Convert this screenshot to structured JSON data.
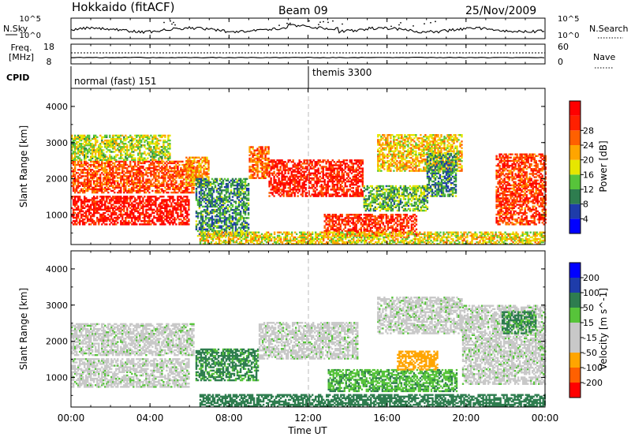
{
  "header": {
    "station": "Hokkaido (fitACF)",
    "beam": "Beam 09",
    "date": "25/Nov/2009"
  },
  "noise_panel": {
    "left_label": "N.Sky",
    "right_label": "N.Search",
    "tick_top": "10^5",
    "tick_bottom": "10^0"
  },
  "freq_panel": {
    "left_label_1": "Freq.",
    "left_label_2": "[MHz]",
    "left_tick_top": "18",
    "left_tick_bottom": "8",
    "right_tick_top": "60",
    "right_tick_bottom": "0",
    "right_label": "Nave"
  },
  "cpid": {
    "label": "CPID",
    "mode1": "normal (fast) 151",
    "mode2": "themis 3300"
  },
  "colors": {
    "power_scale": [
      "#0000ff",
      "#1e3caa",
      "#2e7d4f",
      "#57c43a",
      "#e6e600",
      "#ffa500",
      "#ff6000",
      "#ff2000",
      "#ff0000"
    ],
    "velocity_scale": [
      "#ff0000",
      "#ff6000",
      "#ffa500",
      "#c8c8c8",
      "#c8c8c8",
      "#57c43a",
      "#2e7d4f",
      "#1e3caa",
      "#0000ff"
    ],
    "ground_scatter": "#b4b4b4"
  },
  "chart_data": {
    "type": "heatmap",
    "x_axis": {
      "label": "Time UT",
      "range_hours": [
        0,
        24
      ],
      "ticks": [
        "00:00",
        "04:00",
        "08:00",
        "12:00",
        "16:00",
        "20:00",
        "00:00"
      ]
    },
    "y_axis": {
      "label": "Slant Range [km]",
      "range_km": [
        180,
        4500
      ],
      "ticks": [
        "1000",
        "2000",
        "3000",
        "4000"
      ]
    },
    "power_panel": {
      "colorbar_label": "Power [dB]",
      "colorbar_ticks": [
        "4",
        "8",
        "12",
        "16",
        "20",
        "24",
        "28"
      ],
      "range_db": [
        0,
        30
      ],
      "regions": [
        {
          "t0": 0.0,
          "t1": 6.0,
          "r0": 720,
          "r1": 1500,
          "power": 27
        },
        {
          "t0": 0.0,
          "t1": 6.2,
          "r0": 1600,
          "r1": 2500,
          "power": 23
        },
        {
          "t0": 0.0,
          "t1": 5.0,
          "r0": 2500,
          "r1": 3200,
          "power": 14
        },
        {
          "t0": 5.8,
          "t1": 7.0,
          "r0": 1800,
          "r1": 2600,
          "power": 19
        },
        {
          "t0": 6.3,
          "t1": 9.0,
          "r0": 400,
          "r1": 2000,
          "power": 9
        },
        {
          "t0": 9.0,
          "t1": 10.0,
          "r0": 2000,
          "r1": 2900,
          "power": 21
        },
        {
          "t0": 10.0,
          "t1": 14.8,
          "r0": 1500,
          "r1": 2500,
          "power": 26
        },
        {
          "t0": 12.8,
          "t1": 17.5,
          "r0": 400,
          "r1": 1000,
          "power": 25
        },
        {
          "t0": 14.8,
          "t1": 18.0,
          "r0": 1100,
          "r1": 1800,
          "power": 11
        },
        {
          "t0": 15.5,
          "t1": 19.8,
          "r0": 2200,
          "r1": 3200,
          "power": 17
        },
        {
          "t0": 18.0,
          "t1": 19.5,
          "r0": 1500,
          "r1": 2700,
          "power": 9
        },
        {
          "t0": 21.5,
          "t1": 24.0,
          "r0": 720,
          "r1": 2700,
          "power": 24
        },
        {
          "t0": 6.5,
          "t1": 24.0,
          "r0": 180,
          "r1": 500,
          "power": 16
        }
      ]
    },
    "velocity_panel": {
      "colorbar_label": "Velocity [m s^-1]",
      "colorbar_ticks": [
        "200",
        "100",
        "50",
        "15",
        "-15",
        "-50",
        "-100",
        "-200"
      ],
      "range_ms": [
        -250,
        250
      ],
      "regions": [
        {
          "t0": 0.0,
          "t1": 6.0,
          "r0": 720,
          "r1": 1500,
          "velocity": 0
        },
        {
          "t0": 0.0,
          "t1": 6.2,
          "r0": 1600,
          "r1": 2500,
          "velocity": 0
        },
        {
          "t0": 6.3,
          "t1": 9.5,
          "r0": 900,
          "r1": 1800,
          "velocity": 60
        },
        {
          "t0": 9.5,
          "t1": 14.5,
          "r0": 1500,
          "r1": 2500,
          "velocity": 0
        },
        {
          "t0": 13.0,
          "t1": 19.5,
          "r0": 600,
          "r1": 1200,
          "velocity": 40
        },
        {
          "t0": 15.5,
          "t1": 19.8,
          "r0": 2200,
          "r1": 3200,
          "velocity": 0
        },
        {
          "t0": 16.5,
          "t1": 18.5,
          "r0": 1200,
          "r1": 1700,
          "velocity": -70
        },
        {
          "t0": 19.8,
          "t1": 24.0,
          "r0": 800,
          "r1": 3000,
          "velocity": 0
        },
        {
          "t0": 21.8,
          "t1": 23.5,
          "r0": 2200,
          "r1": 2800,
          "velocity": 60
        },
        {
          "t0": 6.5,
          "t1": 24.0,
          "r0": 180,
          "r1": 500,
          "velocity": 80
        }
      ]
    }
  }
}
